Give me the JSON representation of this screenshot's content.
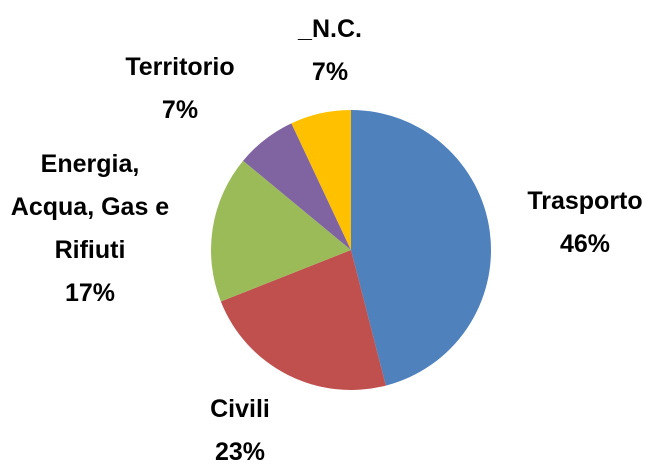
{
  "chart_data": {
    "type": "pie",
    "categories": [
      "Trasporto",
      "Civili",
      "Energia, Acqua, Gas e Rifiuti",
      "Territorio",
      "_N.C."
    ],
    "values": [
      46,
      23,
      17,
      7,
      7
    ],
    "value_labels": [
      "46%",
      "23%",
      "17%",
      "7%",
      "7%"
    ],
    "colors": [
      "#4f81bd",
      "#c0504d",
      "#9bbb59",
      "#8064a2",
      "#ffc000"
    ]
  }
}
